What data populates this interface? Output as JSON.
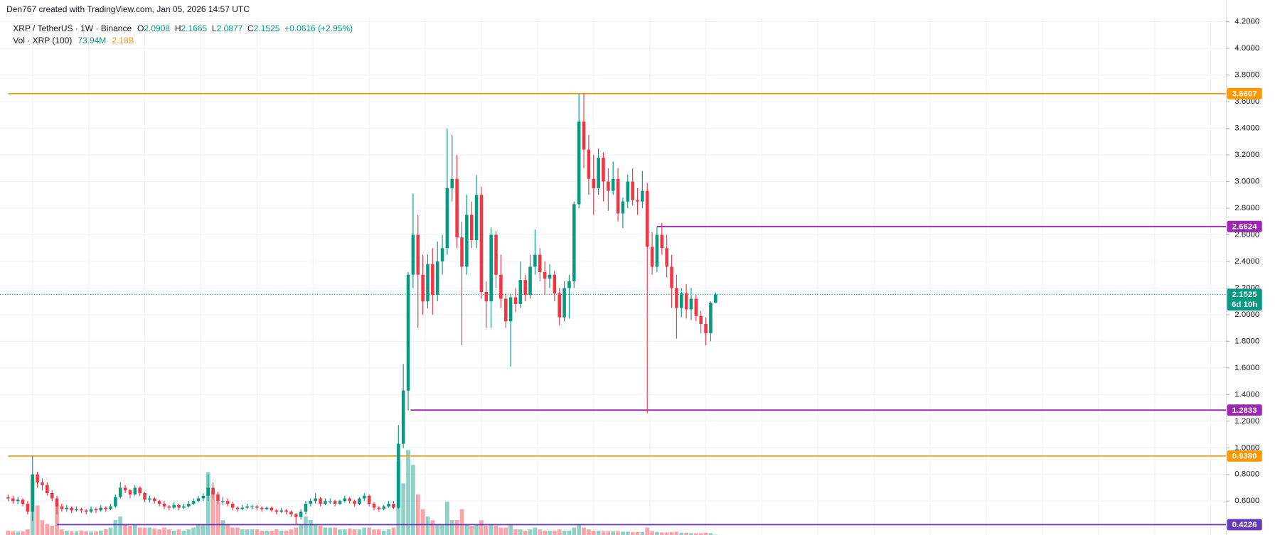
{
  "chart_data": {
    "type": "candlestick",
    "credit": "Den767 created with TradingView.com, Jan 05, 2026 14:57 UTC",
    "title": "XRP / TetherUS · 1W · Binance",
    "ohlc": [
      {
        "label": "O",
        "value": 2.0908
      },
      {
        "label": "H",
        "value": 2.1665
      },
      {
        "label": "L",
        "value": 2.0877
      },
      {
        "label": "C",
        "value": 2.1525
      }
    ],
    "change": "+0.0616 (+2.95%)",
    "volume_title": "Vol · XRP (100)",
    "volume_labels": [
      "73.94M",
      "2.18B"
    ],
    "timer": "6d 10h",
    "up_color": "#089981",
    "down_color": "#f23645",
    "ylim": [
      0.345,
      4.23
    ],
    "yticks": [
      {
        "value": 0.6,
        "label": "0.6000"
      },
      {
        "value": 0.8,
        "label": "0.8000"
      },
      {
        "value": 1.0,
        "label": "1.0000"
      },
      {
        "value": 1.2,
        "label": "1.2000"
      },
      {
        "value": 1.4,
        "label": "1.4000"
      },
      {
        "value": 1.6,
        "label": "1.6000"
      },
      {
        "value": 1.8,
        "label": "1.8000"
      },
      {
        "value": 2.0,
        "label": "2.0000"
      },
      {
        "value": 2.2,
        "label": "2.2000"
      },
      {
        "value": 2.4,
        "label": "2.4000"
      },
      {
        "value": 2.6,
        "label": "2.6000"
      },
      {
        "value": 2.8,
        "label": "2.8000"
      },
      {
        "value": 3.0,
        "label": "3.0000"
      },
      {
        "value": 3.2,
        "label": "3.2000"
      },
      {
        "value": 3.4,
        "label": "3.4000"
      },
      {
        "value": 3.6,
        "label": "3.6000"
      },
      {
        "value": 3.8,
        "label": "3.8000"
      },
      {
        "value": 4.0,
        "label": "4.0000"
      },
      {
        "value": 4.2,
        "label": "4.2000"
      }
    ],
    "grid": true,
    "levels": [
      {
        "value": 3.6607,
        "color": "#ff9800"
      },
      {
        "value": 2.6624,
        "color": "#9c27b0"
      },
      {
        "value": 1.2833,
        "color": "#9c27b0"
      },
      {
        "value": 0.938,
        "label": "0.9380",
        "color": "#ff9800"
      },
      {
        "value": 0.4226,
        "color": "#673ab7"
      }
    ],
    "candles": [
      [
        0.63,
        0.65,
        0.6,
        0.62
      ],
      [
        0.62,
        0.64,
        0.58,
        0.6
      ],
      [
        0.6,
        0.63,
        0.58,
        0.61
      ],
      [
        0.61,
        0.62,
        0.56,
        0.58
      ],
      [
        0.58,
        0.6,
        0.5,
        0.52
      ],
      [
        0.52,
        0.94,
        0.45,
        0.8
      ],
      [
        0.8,
        0.82,
        0.7,
        0.74
      ],
      [
        0.74,
        0.77,
        0.68,
        0.72
      ],
      [
        0.72,
        0.74,
        0.64,
        0.66
      ],
      [
        0.66,
        0.68,
        0.6,
        0.62
      ],
      [
        0.62,
        0.64,
        0.5,
        0.56
      ],
      [
        0.56,
        0.58,
        0.52,
        0.54
      ],
      [
        0.54,
        0.57,
        0.52,
        0.55
      ],
      [
        0.55,
        0.56,
        0.51,
        0.53
      ],
      [
        0.53,
        0.56,
        0.52,
        0.54
      ],
      [
        0.54,
        0.55,
        0.51,
        0.53
      ],
      [
        0.53,
        0.54,
        0.5,
        0.52
      ],
      [
        0.52,
        0.56,
        0.51,
        0.54
      ],
      [
        0.54,
        0.55,
        0.51,
        0.53
      ],
      [
        0.53,
        0.57,
        0.52,
        0.55
      ],
      [
        0.55,
        0.56,
        0.52,
        0.54
      ],
      [
        0.54,
        0.58,
        0.53,
        0.56
      ],
      [
        0.56,
        0.65,
        0.55,
        0.63
      ],
      [
        0.63,
        0.74,
        0.62,
        0.7
      ],
      [
        0.7,
        0.72,
        0.66,
        0.68
      ],
      [
        0.68,
        0.69,
        0.62,
        0.65
      ],
      [
        0.65,
        0.72,
        0.64,
        0.7
      ],
      [
        0.7,
        0.71,
        0.64,
        0.66
      ],
      [
        0.66,
        0.67,
        0.59,
        0.61
      ],
      [
        0.61,
        0.64,
        0.59,
        0.62
      ],
      [
        0.62,
        0.63,
        0.58,
        0.6
      ],
      [
        0.6,
        0.61,
        0.56,
        0.58
      ],
      [
        0.58,
        0.6,
        0.54,
        0.56
      ],
      [
        0.56,
        0.57,
        0.53,
        0.55
      ],
      [
        0.55,
        0.59,
        0.54,
        0.57
      ],
      [
        0.57,
        0.58,
        0.53,
        0.55
      ],
      [
        0.55,
        0.58,
        0.54,
        0.56
      ],
      [
        0.56,
        0.6,
        0.55,
        0.58
      ],
      [
        0.58,
        0.62,
        0.57,
        0.6
      ],
      [
        0.6,
        0.64,
        0.59,
        0.62
      ],
      [
        0.62,
        0.66,
        0.6,
        0.64
      ],
      [
        0.64,
        0.8,
        0.6,
        0.7
      ],
      [
        0.7,
        0.74,
        0.62,
        0.65
      ],
      [
        0.65,
        0.67,
        0.58,
        0.6
      ],
      [
        0.6,
        0.63,
        0.57,
        0.6
      ],
      [
        0.6,
        0.62,
        0.56,
        0.58
      ],
      [
        0.58,
        0.59,
        0.53,
        0.55
      ],
      [
        0.55,
        0.56,
        0.52,
        0.54
      ],
      [
        0.54,
        0.57,
        0.53,
        0.55
      ],
      [
        0.55,
        0.58,
        0.54,
        0.56
      ],
      [
        0.56,
        0.57,
        0.54,
        0.56
      ],
      [
        0.56,
        0.57,
        0.53,
        0.55
      ],
      [
        0.55,
        0.56,
        0.52,
        0.54
      ],
      [
        0.54,
        0.56,
        0.53,
        0.55
      ],
      [
        0.55,
        0.56,
        0.52,
        0.53
      ],
      [
        0.53,
        0.54,
        0.5,
        0.52
      ],
      [
        0.52,
        0.55,
        0.51,
        0.53
      ],
      [
        0.53,
        0.54,
        0.5,
        0.52
      ],
      [
        0.52,
        0.53,
        0.48,
        0.5
      ],
      [
        0.5,
        0.51,
        0.42,
        0.48
      ],
      [
        0.48,
        0.54,
        0.46,
        0.52
      ],
      [
        0.52,
        0.6,
        0.5,
        0.58
      ],
      [
        0.58,
        0.62,
        0.56,
        0.6
      ],
      [
        0.6,
        0.66,
        0.58,
        0.62
      ],
      [
        0.62,
        0.63,
        0.56,
        0.58
      ],
      [
        0.58,
        0.62,
        0.57,
        0.6
      ],
      [
        0.6,
        0.62,
        0.58,
        0.6
      ],
      [
        0.6,
        0.61,
        0.56,
        0.58
      ],
      [
        0.58,
        0.61,
        0.57,
        0.6
      ],
      [
        0.6,
        0.64,
        0.59,
        0.62
      ],
      [
        0.62,
        0.63,
        0.58,
        0.6
      ],
      [
        0.6,
        0.61,
        0.56,
        0.58
      ],
      [
        0.58,
        0.63,
        0.57,
        0.62
      ],
      [
        0.62,
        0.66,
        0.6,
        0.64
      ],
      [
        0.64,
        0.65,
        0.56,
        0.58
      ],
      [
        0.58,
        0.59,
        0.53,
        0.55
      ],
      [
        0.55,
        0.56,
        0.52,
        0.54
      ],
      [
        0.54,
        0.57,
        0.53,
        0.56
      ],
      [
        0.56,
        0.6,
        0.55,
        0.58
      ],
      [
        0.58,
        0.6,
        0.54,
        0.55
      ],
      [
        0.55,
        1.17,
        0.54,
        1.03
      ],
      [
        1.03,
        1.63,
        1.0,
        1.43
      ],
      [
        1.43,
        2.32,
        1.28,
        2.3
      ],
      [
        2.3,
        2.91,
        2.2,
        2.6
      ],
      [
        2.6,
        2.75,
        1.9,
        2.3
      ],
      [
        2.3,
        2.45,
        2.0,
        2.1
      ],
      [
        2.1,
        2.45,
        2.05,
        2.38
      ],
      [
        2.38,
        2.5,
        2.0,
        2.15
      ],
      [
        2.15,
        2.55,
        2.1,
        2.4
      ],
      [
        2.4,
        2.6,
        2.3,
        2.5
      ],
      [
        2.5,
        3.4,
        2.45,
        2.95
      ],
      [
        2.95,
        3.35,
        2.85,
        3.02
      ],
      [
        3.02,
        3.2,
        2.5,
        2.58
      ],
      [
        2.58,
        2.7,
        1.77,
        2.36
      ],
      [
        2.36,
        2.9,
        2.3,
        2.75
      ],
      [
        2.75,
        2.85,
        2.5,
        2.56
      ],
      [
        2.56,
        3.05,
        2.5,
        2.9
      ],
      [
        2.9,
        2.96,
        2.12,
        2.17
      ],
      [
        2.17,
        2.25,
        1.9,
        2.1
      ],
      [
        2.1,
        2.65,
        1.9,
        2.6
      ],
      [
        2.6,
        2.63,
        2.2,
        2.3
      ],
      [
        2.3,
        2.45,
        2.05,
        2.12
      ],
      [
        2.12,
        2.16,
        1.9,
        1.95
      ],
      [
        1.95,
        2.15,
        1.61,
        2.13
      ],
      [
        2.13,
        2.2,
        2.02,
        2.08
      ],
      [
        2.08,
        2.4,
        2.05,
        2.26
      ],
      [
        2.26,
        2.3,
        2.1,
        2.15
      ],
      [
        2.15,
        2.45,
        2.12,
        2.36
      ],
      [
        2.36,
        2.64,
        2.3,
        2.45
      ],
      [
        2.45,
        2.5,
        2.25,
        2.32
      ],
      [
        2.32,
        2.4,
        2.15,
        2.27
      ],
      [
        2.27,
        2.38,
        2.2,
        2.3
      ],
      [
        2.3,
        2.33,
        2.1,
        2.16
      ],
      [
        2.16,
        2.2,
        1.92,
        1.98
      ],
      [
        1.98,
        2.25,
        1.95,
        2.2
      ],
      [
        2.2,
        2.3,
        1.97,
        2.25
      ],
      [
        2.25,
        2.85,
        2.2,
        2.83
      ],
      [
        2.83,
        3.66,
        2.8,
        3.45
      ],
      [
        3.45,
        3.66,
        3.1,
        3.24
      ],
      [
        3.24,
        3.35,
        2.9,
        3.02
      ],
      [
        3.02,
        3.2,
        2.75,
        2.95
      ],
      [
        2.95,
        3.25,
        2.9,
        3.18
      ],
      [
        3.18,
        3.22,
        2.85,
        3.0
      ],
      [
        3.0,
        3.1,
        2.78,
        2.93
      ],
      [
        2.93,
        3.15,
        2.9,
        3.02
      ],
      [
        3.02,
        3.1,
        2.7,
        2.76
      ],
      [
        2.76,
        2.88,
        2.65,
        2.85
      ],
      [
        2.85,
        3.05,
        2.8,
        3.0
      ],
      [
        3.0,
        3.1,
        2.82,
        2.86
      ],
      [
        2.86,
        2.95,
        2.75,
        2.85
      ],
      [
        2.85,
        3.08,
        2.8,
        2.93
      ],
      [
        2.93,
        2.99,
        1.26,
        2.51
      ],
      [
        2.51,
        2.62,
        2.3,
        2.36
      ],
      [
        2.36,
        2.66,
        2.32,
        2.6
      ],
      [
        2.6,
        2.69,
        2.45,
        2.5
      ],
      [
        2.5,
        2.6,
        2.28,
        2.36
      ],
      [
        2.36,
        2.45,
        2.05,
        2.2
      ],
      [
        2.2,
        2.3,
        1.82,
        2.05
      ],
      [
        2.05,
        2.2,
        1.98,
        2.16
      ],
      [
        2.16,
        2.23,
        1.97,
        2.04
      ],
      [
        2.04,
        2.2,
        1.96,
        2.12
      ],
      [
        2.12,
        2.15,
        1.95,
        1.99
      ],
      [
        1.99,
        2.03,
        1.86,
        1.93
      ],
      [
        1.93,
        1.98,
        1.77,
        1.86
      ],
      [
        1.86,
        2.1,
        1.8,
        2.09
      ],
      [
        2.0908,
        2.1665,
        2.0877,
        2.1525
      ]
    ],
    "volumes": [
      1.2,
      1,
      0.9,
      1,
      1.5,
      15,
      8,
      4,
      3,
      2.5,
      8,
      1.5,
      1.2,
      1,
      1,
      1.2,
      1,
      0.9,
      1,
      1.2,
      1.5,
      2,
      4,
      5,
      3,
      2.5,
      3,
      2,
      2,
      2,
      1.8,
      1.5,
      2,
      1.5,
      1.2,
      1.5,
      1.2,
      1.5,
      2,
      3,
      3,
      17,
      12,
      9,
      4,
      3,
      2,
      2,
      1.5,
      1.5,
      1.5,
      1.5,
      1.2,
      1.2,
      1.2,
      1.5,
      1.2,
      1.2,
      1.5,
      2,
      3,
      5,
      4,
      3,
      2.5,
      2,
      2,
      2,
      1.5,
      1.5,
      1.8,
      1.5,
      1.5,
      2,
      2,
      1.5,
      1.5,
      1.2,
      1.5,
      2,
      20,
      14,
      23,
      19,
      11,
      7,
      5,
      4,
      3,
      3,
      9,
      4,
      4,
      7,
      3,
      2.5,
      3,
      4,
      2.5,
      3,
      2.5,
      2,
      2,
      3,
      1.5,
      1.5,
      1.2,
      1.5,
      2,
      1.5,
      1.2,
      1.2,
      1.2,
      1.5,
      1.2,
      1.2,
      2,
      3,
      2,
      1.5,
      1.2,
      1.2,
      1,
      1,
      1,
      1,
      0.9,
      0.9,
      0.8,
      0.8,
      0.8,
      2,
      1,
      0.8,
      0.7,
      0.7,
      0.8,
      0.9,
      0.6,
      0.6,
      0.5,
      0.5,
      0.5,
      0.6,
      0.5,
      0.07394
    ]
  }
}
